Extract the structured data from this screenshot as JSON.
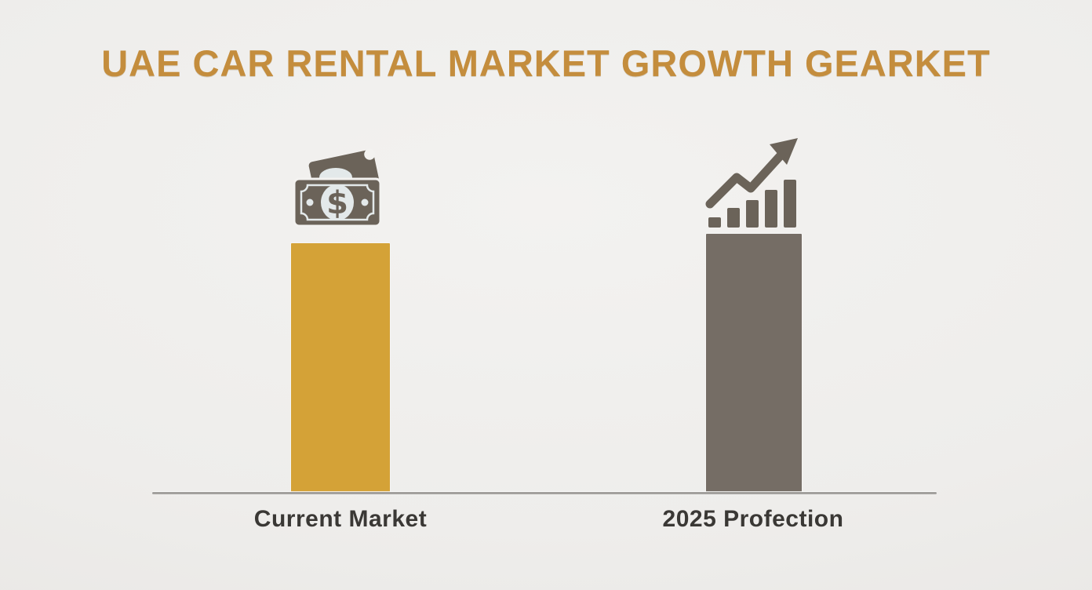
{
  "chart_data": {
    "type": "bar",
    "title": "UAE CAR RENTAL MARKET GROWTH GEARKET",
    "categories": [
      "Current Market",
      "2025 Profection"
    ],
    "values": [
      319,
      331
    ],
    "values_unit": "relative bar heights in px (no numeric axis or data labels shown)",
    "bar_colors": [
      "#d4a237",
      "#756d65"
    ],
    "bar_icons": [
      "money-bill-icon",
      "growth-trend-icon"
    ],
    "xlabel": "",
    "ylabel": "",
    "ylim": [
      0,
      340
    ],
    "grid": false,
    "legend": "none",
    "baseline_axis": "x-axis line only"
  },
  "colors": {
    "title": "#c48d3d",
    "bar_gold": "#d4a237",
    "bar_gray": "#756d65",
    "icon": "#6b6359",
    "icon_light": "#e3e9ea",
    "axis": "#a3a19e",
    "label": "#3a3835",
    "bg_center": "#f3f2f0",
    "bg_edge": "#e7e5e2"
  },
  "icons": {
    "money": "money-bill-icon",
    "growth": "growth-trend-icon"
  }
}
